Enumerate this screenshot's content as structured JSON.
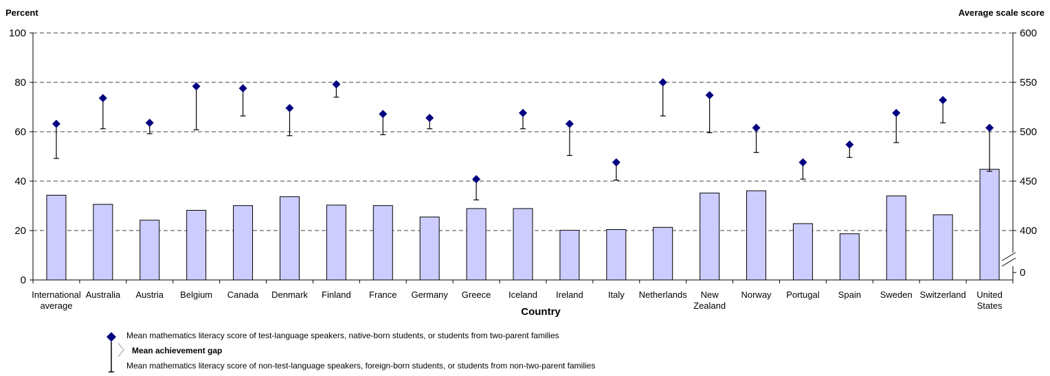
{
  "colors": {
    "bar_fill": "#ccccff",
    "bar_stroke": "#000000",
    "marker": "#000080",
    "grid": "#000000",
    "gap_arrow": "#bbbbbb"
  },
  "chart_data": {
    "type": "bar",
    "left_axis_title": "Percent",
    "right_axis_title": "Average scale score",
    "xlabel": "Country",
    "left_ylim": [
      0,
      100
    ],
    "left_ticks": [
      "0",
      "20",
      "40",
      "60",
      "80",
      "100"
    ],
    "right_ylim": [
      400,
      600
    ],
    "right_ticks": [
      "0",
      "400",
      "450",
      "500",
      "550",
      "600"
    ],
    "right_axis_break": true,
    "grid": "horizontal dashed",
    "categories": [
      [
        "International",
        "average"
      ],
      [
        "Australia"
      ],
      [
        "Austria"
      ],
      [
        "Belgium"
      ],
      [
        "Canada"
      ],
      [
        "Denmark"
      ],
      [
        "Finland"
      ],
      [
        "France"
      ],
      [
        "Germany"
      ],
      [
        "Greece"
      ],
      [
        "Iceland"
      ],
      [
        "Ireland"
      ],
      [
        "Italy"
      ],
      [
        "Netherlands"
      ],
      [
        "New",
        "Zealand"
      ],
      [
        "Norway"
      ],
      [
        "Portugal"
      ],
      [
        "Spain"
      ],
      [
        "Sweden"
      ],
      [
        "Switzerland"
      ],
      [
        "United",
        "States"
      ]
    ],
    "series": [
      {
        "axis": "left",
        "values": [
          34.3,
          30.6,
          24.2,
          28.2,
          30.1,
          33.7,
          30.3,
          30.1,
          25.5,
          28.9,
          28.9,
          20.1,
          20.4,
          21.3,
          35.2,
          36.1,
          22.8,
          18.7,
          34.0,
          26.4,
          44.8
        ]
      },
      {
        "axis": "right",
        "values": [
          508,
          534,
          509,
          546,
          544,
          524,
          548,
          518,
          514,
          452,
          519,
          508,
          469,
          550,
          537,
          504,
          469,
          487,
          519,
          532,
          504
        ]
      },
      {
        "axis": "right",
        "values": [
          473,
          503,
          498,
          502,
          516,
          496,
          535,
          497,
          503,
          431,
          503,
          476,
          451,
          516,
          499,
          479,
          452,
          474,
          489,
          509,
          460
        ]
      }
    ],
    "legend": {
      "high_label": "Mean mathematics literacy score of test-language speakers, native-born students, or students from two-parent families",
      "gap_label": "Mean achievement gap",
      "low_label": "Mean mathematics literacy score of non-test-language speakers, foreign-born students, or students from non-two-parent families"
    }
  }
}
